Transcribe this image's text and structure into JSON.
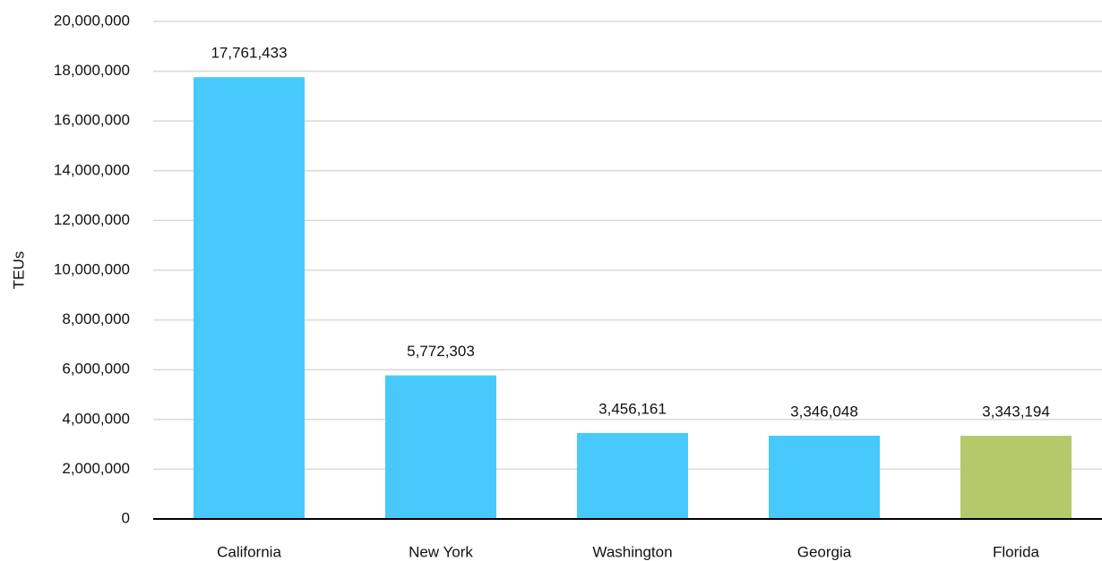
{
  "chart_data": {
    "type": "bar",
    "ylabel": "TEUs",
    "categories": [
      "California",
      "New York",
      "Washington",
      "Georgia",
      "Florida"
    ],
    "values": [
      17761433,
      5772303,
      3456161,
      3346048,
      3343194
    ],
    "value_labels": [
      "17,761,433",
      "5,772,303",
      "3,456,161",
      "3,346,048",
      "3,343,194"
    ],
    "colors": [
      "#48c9fc",
      "#48c9fc",
      "#48c9fc",
      "#48c9fc",
      "#b5c96b"
    ],
    "ylim": [
      0,
      20000000
    ],
    "yticks": [
      0,
      {
        "value": 2000000,
        "label": "2,000,000"
      },
      {
        "value": 4000000,
        "label": "4,000,000"
      },
      {
        "value": 6000000,
        "label": "6,000,000"
      },
      {
        "value": 8000000,
        "label": "8,000,000"
      },
      {
        "value": 10000000,
        "label": "10,000,000"
      },
      {
        "value": 12000000,
        "label": "12,000,000"
      },
      {
        "value": 14000000,
        "label": "14,000,000"
      },
      {
        "value": 16000000,
        "label": "16,000,000"
      },
      {
        "value": 18000000,
        "label": "18,000,000"
      },
      {
        "value": 20000000,
        "label": "20,000,000"
      }
    ],
    "grid": true
  }
}
